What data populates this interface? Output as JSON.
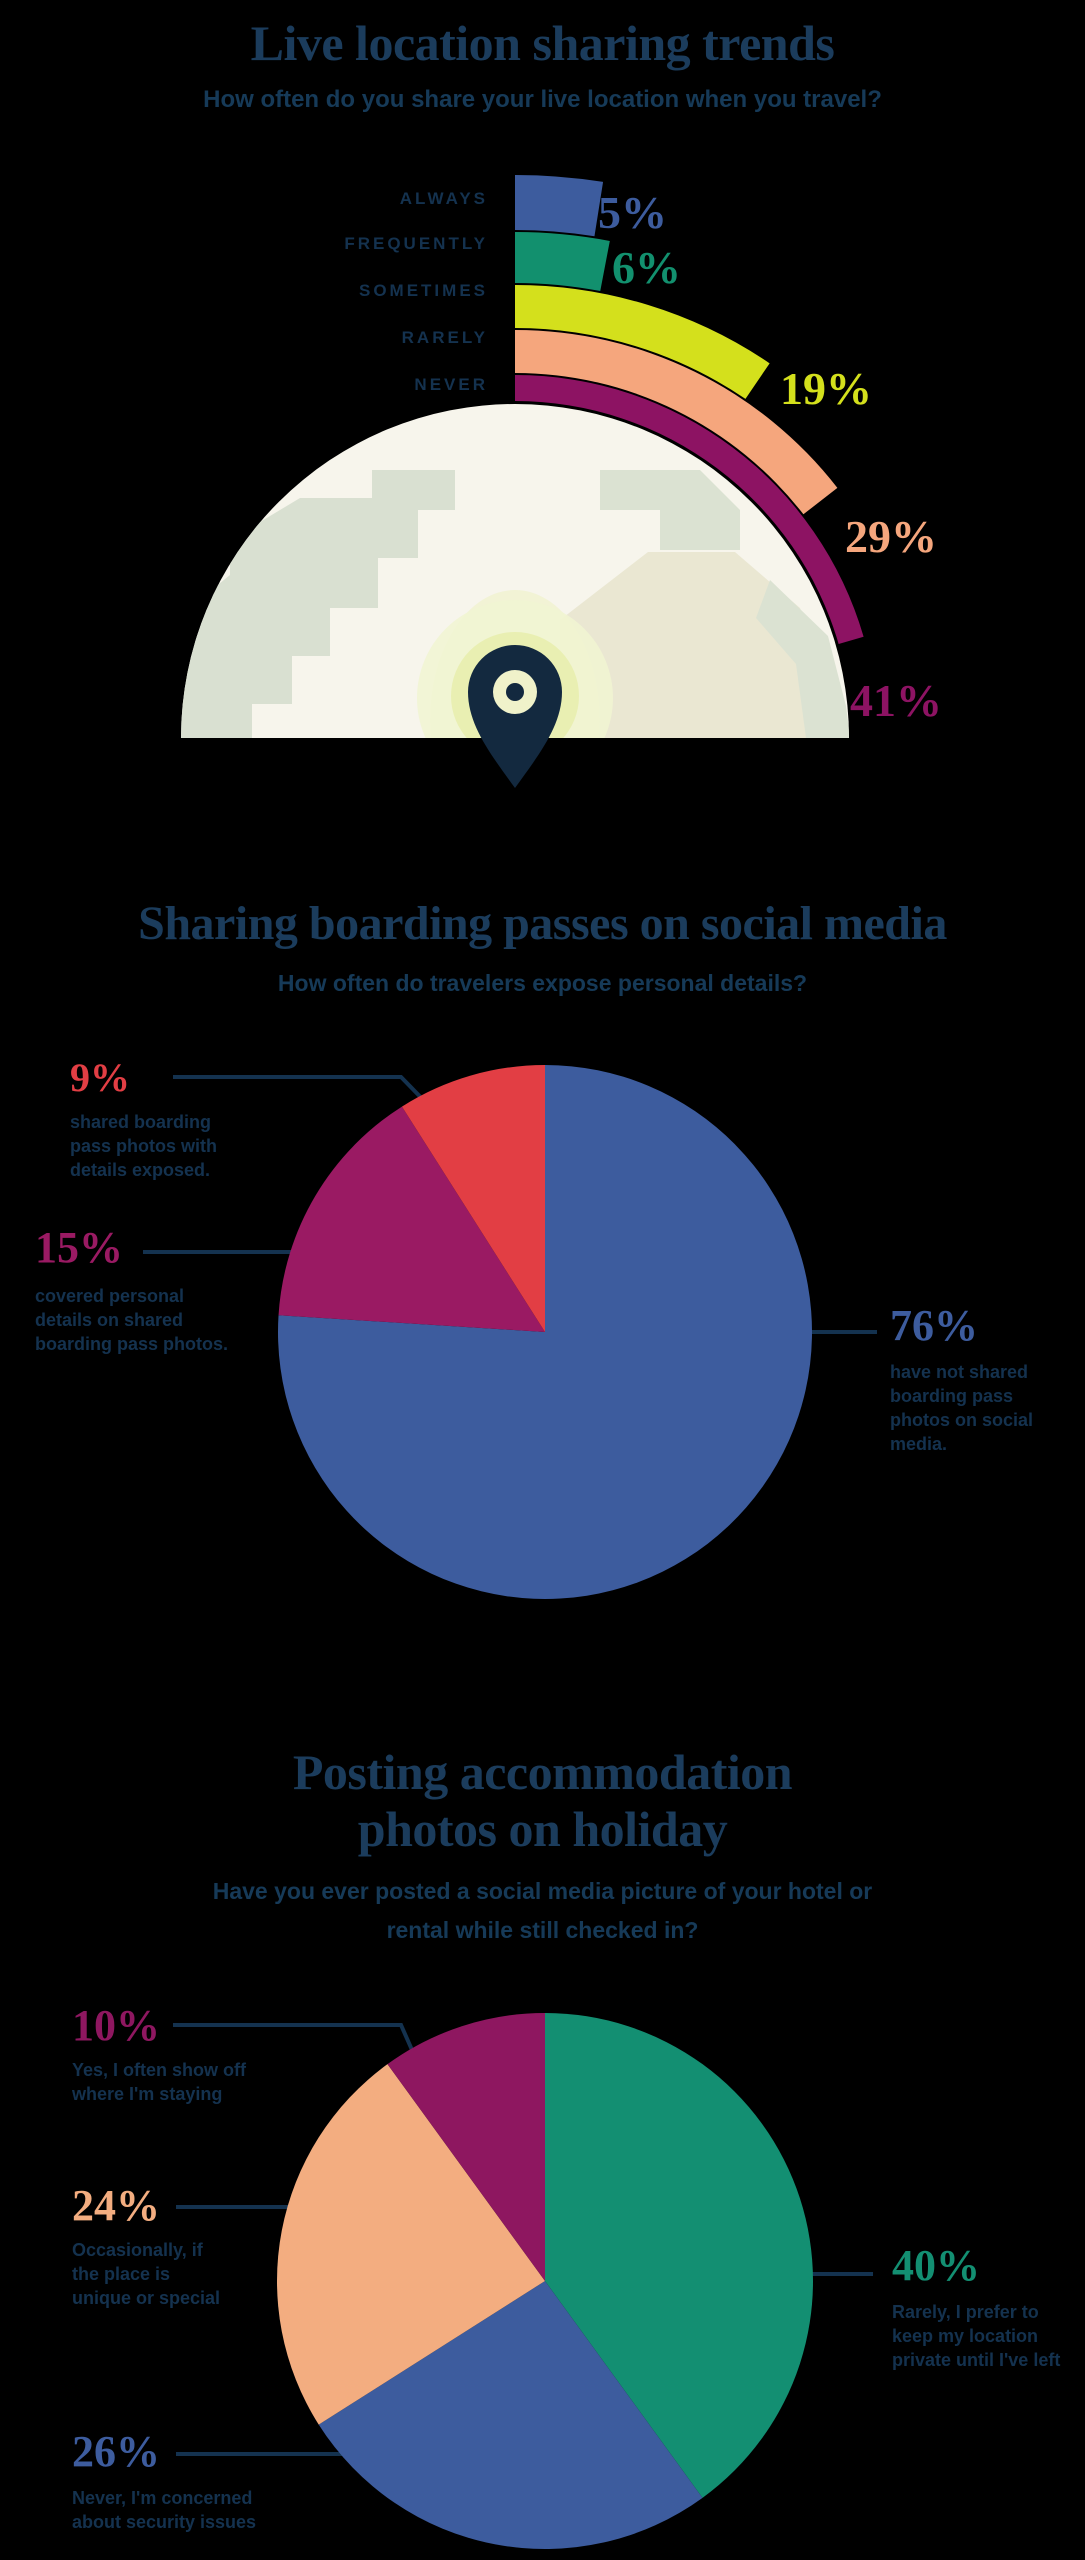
{
  "accent_colors": {
    "navy_text": "#14324f",
    "title_navy": "#1b3c5c",
    "background": "#000000"
  },
  "chart_data": [
    {
      "type": "radial-bar",
      "title": "Live location sharing trends",
      "subtitle": "How often do you share your live location when you travel?",
      "angle_per_percent": 1.8,
      "angle_scale_note": "semicircle scale, 0% at 12 o'clock sweeping clockwise, 100% = 180 degrees",
      "center_icon": "location-pin-on-globe",
      "series": [
        {
          "label": "ALWAYS",
          "value": 5,
          "display": "5%",
          "color": "#3d5c9e"
        },
        {
          "label": "FREQUENTLY",
          "value": 6,
          "display": "6%",
          "color": "#12906e"
        },
        {
          "label": "SOMETIMES",
          "value": 19,
          "display": "19%",
          "color": "#d4e01c"
        },
        {
          "label": "RARELY",
          "value": 29,
          "display": "29%",
          "color": "#f5a67d"
        },
        {
          "label": "NEVER",
          "value": 41,
          "display": "41%",
          "color": "#8d1363"
        }
      ]
    },
    {
      "type": "pie",
      "title": "Sharing boarding passes on social media",
      "subtitle": "How often do travelers expose personal details?",
      "start_angle_deg": 0,
      "direction": "clockwise",
      "slices": [
        {
          "value": 76,
          "display": "76%",
          "color": "#3d5c9e",
          "caption": "have not shared boarding pass photos on social media."
        },
        {
          "value": 15,
          "display": "15%",
          "color": "#9a1a63",
          "caption": "covered personal details on shared boarding pass photos."
        },
        {
          "value": 9,
          "display": "9%",
          "color": "#e23e44",
          "caption": "shared boarding pass photos with details exposed."
        }
      ]
    },
    {
      "type": "pie",
      "title": "Posting accommodation photos on holiday",
      "subtitle": "Have you ever posted a social media picture of your hotel or rental while still checked in?",
      "start_angle_deg": 0,
      "direction": "clockwise",
      "slices": [
        {
          "value": 40,
          "display": "40%",
          "color": "#138f72",
          "caption": "Rarely, I prefer to keep my location private until I've left"
        },
        {
          "value": 26,
          "display": "26%",
          "color": "#3d5c9e",
          "caption": "Never, I'm concerned about security issues"
        },
        {
          "value": 24,
          "display": "24%",
          "color": "#f3ad80",
          "caption": "Occasionally, if the place is unique or special"
        },
        {
          "value": 10,
          "display": "10%",
          "color": "#8e1760",
          "caption": "Yes, I often show off where I'm staying"
        }
      ]
    }
  ]
}
